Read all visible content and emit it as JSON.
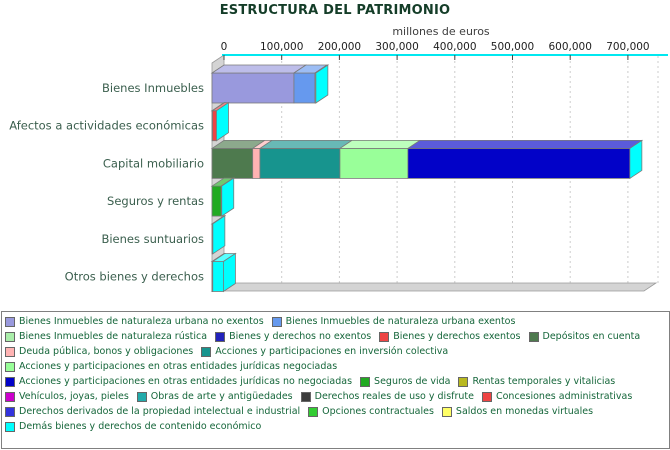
{
  "chart_data": {
    "type": "bar",
    "orientation": "horizontal",
    "stacked": true,
    "effect": "3d",
    "title": "ESTRUCTURA DEL PATRIMONIO",
    "xlabel": "millones de euros",
    "xlim": [
      0,
      700000
    ],
    "x_ticks": [
      "0",
      "100,000",
      "200,000",
      "300,000",
      "400,000",
      "500,000",
      "600,000",
      "700,000"
    ],
    "grid": "dashed-vertical",
    "legend_position": "bottom",
    "categories": [
      "Bienes Inmuebles",
      "Afectos a actividades económicas",
      "Capital mobiliario",
      "Seguros y rentas",
      "Bienes suntuarios",
      "Otros bienes y derechos"
    ],
    "series": [
      {
        "name": "Bienes Inmuebles de naturaleza urbana no exentos",
        "color": "#9999dd",
        "values": [
          142000,
          0,
          0,
          0,
          0,
          0
        ]
      },
      {
        "name": "Bienes Inmuebles de naturaleza urbana exentos",
        "color": "#6699ee",
        "values": [
          36500,
          0,
          0,
          0,
          0,
          0
        ]
      },
      {
        "name": "Bienes Inmuebles de naturaleza rústica",
        "color": "#aaeeaa",
        "values": [
          1500,
          0,
          0,
          0,
          0,
          0
        ]
      },
      {
        "name": "Bienes y derechos no exentos",
        "color": "#2222bb",
        "values": [
          0,
          800,
          0,
          0,
          0,
          0
        ]
      },
      {
        "name": "Bienes y derechos exentos",
        "color": "#ee4444",
        "values": [
          0,
          7000,
          0,
          0,
          0,
          0
        ]
      },
      {
        "name": "Depósitos en cuenta",
        "color": "#4e7a4e",
        "values": [
          0,
          0,
          70500,
          0,
          0,
          0
        ]
      },
      {
        "name": "Deuda pública, bonos y obligaciones",
        "color": "#ffb3b3",
        "values": [
          0,
          0,
          12600,
          0,
          0,
          0
        ]
      },
      {
        "name": "Acciones y participaciones en inversión colectiva",
        "color": "#17948e",
        "values": [
          0,
          0,
          138600,
          0,
          0,
          0
        ]
      },
      {
        "name": "Acciones y participaciones en otras entidades jurídicas negociadas",
        "color": "#99ff99",
        "values": [
          0,
          0,
          117800,
          0,
          0,
          0
        ]
      },
      {
        "name": "Acciones y participaciones en otras entidades jurídicas no negociadas",
        "color": "#0202c8",
        "values": [
          0,
          0,
          384700,
          0,
          0,
          0
        ]
      },
      {
        "name": "Seguros de vida",
        "color": "#22aa22",
        "values": [
          0,
          0,
          0,
          16000,
          0,
          0
        ]
      },
      {
        "name": "Rentas temporales y vitalicias",
        "color": "#b8b820",
        "values": [
          0,
          0,
          0,
          900,
          0,
          0
        ]
      },
      {
        "name": "Vehículos, joyas, pieles",
        "color": "#cc00cc",
        "values": [
          0,
          0,
          0,
          0,
          900,
          0
        ]
      },
      {
        "name": "Obras de arte y antigüedades",
        "color": "#22aaaa",
        "values": [
          0,
          0,
          0,
          0,
          600,
          0
        ]
      },
      {
        "name": "Derechos reales de uso y disfrute",
        "color": "#3c3c3c",
        "values": [
          0,
          0,
          0,
          0,
          0,
          600
        ]
      },
      {
        "name": "Concesiones administrativas",
        "color": "#ee4444",
        "values": [
          0,
          0,
          0,
          0,
          0,
          300
        ]
      },
      {
        "name": "Derechos derivados de la propiedad intelectual e industrial",
        "color": "#3333dd",
        "values": [
          0,
          0,
          0,
          0,
          0,
          200
        ]
      },
      {
        "name": "Opciones contractuales",
        "color": "#33cc33",
        "values": [
          0,
          0,
          0,
          0,
          0,
          100
        ]
      },
      {
        "name": "Saldos en monedas virtuales",
        "color": "#ffff66",
        "values": [
          0,
          0,
          0,
          0,
          0,
          100
        ]
      },
      {
        "name": "Demás bienes y derechos de contenido económico",
        "color": "#00ffff",
        "values": [
          0,
          0,
          0,
          0,
          0,
          18500
        ]
      }
    ],
    "style": {
      "axis_line_color": "#00e8f0",
      "end_cap_color": "#00ffff",
      "wall_color": "#d4d4d4",
      "grid_color": "#cccccc",
      "title_color": "#143d28",
      "category_label_color": "#3b5f4e",
      "tick_label_color": "#1f1f1f",
      "axis_unit_color": "#3d3d3d",
      "legend_text_color": "#15663a",
      "legend_border_color": "#808080"
    }
  }
}
